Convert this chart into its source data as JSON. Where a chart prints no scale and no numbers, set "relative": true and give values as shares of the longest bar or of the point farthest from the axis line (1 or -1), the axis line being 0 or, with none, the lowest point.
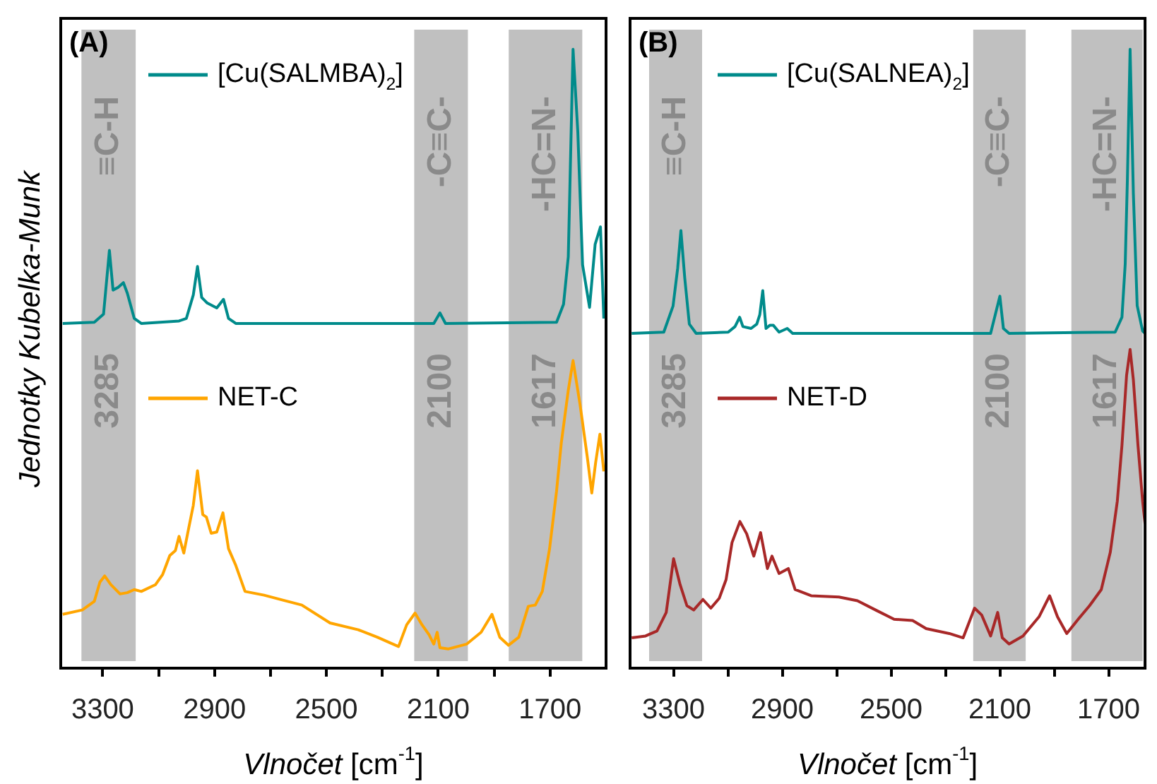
{
  "chart_data": [
    {
      "type": "line",
      "title": "(A)",
      "ylabel": "Jednotky Kubelka-Munk",
      "xlabel": "Vlnočet [cm$^{-1}$]",
      "relative": true,
      "legend": "top left",
      "xlim": [
        3450,
        1500
      ],
      "xticks": [
        3300,
        {
          "value": 3100,
          "label": null
        },
        2900,
        {
          "value": 2700,
          "label": null
        },
        2500,
        {
          "value": 2300,
          "label": null
        },
        2100,
        {
          "value": 1900,
          "label": null
        },
        1700
      ],
      "bands": [
        {
          "axis": "x",
          "from": 3376,
          "to": 3182,
          "label": "≡C-H",
          "color": "#c0c0c0"
        },
        {
          "axis": "x",
          "from": 2186,
          "to": 1994,
          "label": "-C≡C-",
          "color": "#c0c0c0"
        },
        {
          "axis": "x",
          "from": 1848,
          "to": 1585,
          "label": "-HC=N-",
          "color": "#c0c0c0"
        }
      ],
      "annotations": [
        "3285",
        "2100",
        "1617"
      ],
      "series": [
        {
          "name": "[Cu(SALMBA)$_{2}$]",
          "color": "#008b8b",
          "x": [
            3443,
            3330,
            3297,
            3276,
            3263,
            3246,
            3226,
            3212,
            3187,
            3162,
            3027,
            3001,
            2976,
            2961,
            2946,
            2926,
            2892,
            2868,
            2850,
            2824,
            2116,
            2094,
            2074,
            1677,
            1652,
            1635,
            1618,
            1601,
            1584,
            1559,
            1539,
            1520,
            1508
          ],
          "values": [
            0.557,
            0.559,
            0.572,
            0.675,
            0.611,
            0.615,
            0.623,
            0.606,
            0.565,
            0.557,
            0.561,
            0.565,
            0.603,
            0.649,
            0.599,
            0.59,
            0.582,
            0.596,
            0.565,
            0.557,
            0.557,
            0.574,
            0.557,
            0.559,
            0.588,
            0.665,
            1.0,
            0.867,
            0.652,
            0.583,
            0.685,
            0.713,
            0.565
          ]
        },
        {
          "name": "NET-C",
          "color": "#ffa500",
          "x": [
            3443,
            3373,
            3330,
            3310,
            3293,
            3271,
            3238,
            3212,
            3187,
            3162,
            3111,
            3086,
            3060,
            3040,
            3027,
            3010,
            2993,
            2976,
            2961,
            2942,
            2929,
            2912,
            2892,
            2870,
            2850,
            2824,
            2791,
            2723,
            2656,
            2588,
            2487,
            2386,
            2318,
            2268,
            2242,
            2213,
            2183,
            2158,
            2133,
            2116,
            2104,
            2094,
            2065,
            1998,
            1947,
            1908,
            1880,
            1849,
            1812,
            1778,
            1753,
            1728,
            1702,
            1677,
            1660,
            1635,
            1618,
            1593,
            1567,
            1551,
            1537,
            1522,
            1508
          ],
          "values": [
            0.087,
            0.094,
            0.108,
            0.139,
            0.149,
            0.135,
            0.12,
            0.122,
            0.127,
            0.124,
            0.135,
            0.151,
            0.182,
            0.19,
            0.213,
            0.186,
            0.225,
            0.263,
            0.319,
            0.248,
            0.244,
            0.218,
            0.22,
            0.251,
            0.193,
            0.166,
            0.124,
            0.118,
            0.11,
            0.102,
            0.073,
            0.062,
            0.05,
            0.04,
            0.035,
            0.07,
            0.089,
            0.07,
            0.054,
            0.039,
            0.058,
            0.033,
            0.031,
            0.039,
            0.058,
            0.087,
            0.05,
            0.037,
            0.05,
            0.1,
            0.102,
            0.124,
            0.193,
            0.286,
            0.364,
            0.449,
            0.497,
            0.426,
            0.341,
            0.283,
            0.333,
            0.378,
            0.318
          ]
        }
      ]
    },
    {
      "type": "line",
      "title": "(B)",
      "xlabel": "Vlnočet [cm$^{-1}$]",
      "relative": true,
      "legend": "top left",
      "xlim": [
        3460,
        1566
      ],
      "xticks": [
        3300,
        {
          "value": 3100,
          "label": null
        },
        2900,
        {
          "value": 2700,
          "label": null
        },
        2500,
        {
          "value": 2300,
          "label": null
        },
        2100,
        {
          "value": 1900,
          "label": null
        },
        1700
      ],
      "bands": [
        {
          "axis": "x",
          "from": 3390,
          "to": 3195,
          "label": "≡C-H",
          "color": "#c0c0c0"
        },
        {
          "axis": "x",
          "from": 2198,
          "to": 2005,
          "label": "-C≡C-",
          "color": "#c0c0c0"
        },
        {
          "axis": "x",
          "from": 1837,
          "to": 1575,
          "label": "-HC=N-",
          "color": "#c0c0c0"
        }
      ],
      "annotations": [
        "3285",
        "2100",
        "1617"
      ],
      "series": [
        {
          "name": "[Cu(SALNEA)$_{2}$]",
          "color": "#008b8b",
          "x": [
            3454,
            3336,
            3302,
            3285,
            3273,
            3259,
            3242,
            3217,
            3099,
            3074,
            3057,
            3045,
            3015,
            2994,
            2983,
            2972,
            2960,
            2946,
            2933,
            2912,
            2882,
            2862,
            2134,
            2100,
            2087,
            2066,
            1676,
            1651,
            1639,
            1631,
            1621,
            1609,
            1595,
            1575,
            1566
          ],
          "values": [
            0.541,
            0.543,
            0.585,
            0.646,
            0.707,
            0.631,
            0.556,
            0.541,
            0.543,
            0.552,
            0.567,
            0.552,
            0.549,
            0.556,
            0.571,
            0.61,
            0.549,
            0.554,
            0.554,
            0.543,
            0.549,
            0.541,
            0.541,
            0.601,
            0.549,
            0.541,
            0.543,
            0.567,
            0.653,
            0.789,
            1.0,
            0.767,
            0.586,
            0.545,
            0.541
          ]
        },
        {
          "name": "NET-D",
          "color": "#a82828",
          "x": [
            3454,
            3403,
            3361,
            3327,
            3300,
            3276,
            3251,
            3226,
            3192,
            3163,
            3132,
            3107,
            3085,
            3056,
            3031,
            3005,
            2980,
            2955,
            2938,
            2912,
            2878,
            2853,
            2794,
            2692,
            2624,
            2557,
            2489,
            2421,
            2371,
            2286,
            2235,
            2193,
            2167,
            2134,
            2108,
            2091,
            2066,
            2015,
            1956,
            1917,
            1888,
            1854,
            1812,
            1770,
            1727,
            1694,
            1668,
            1651,
            1634,
            1621,
            1609,
            1592,
            1575,
            1566
          ],
          "values": [
            0.049,
            0.052,
            0.06,
            0.09,
            0.177,
            0.135,
            0.101,
            0.094,
            0.111,
            0.097,
            0.113,
            0.143,
            0.203,
            0.237,
            0.217,
            0.181,
            0.219,
            0.161,
            0.181,
            0.153,
            0.161,
            0.127,
            0.117,
            0.115,
            0.109,
            0.094,
            0.079,
            0.077,
            0.064,
            0.056,
            0.049,
            0.097,
            0.086,
            0.052,
            0.09,
            0.049,
            0.039,
            0.052,
            0.083,
            0.117,
            0.083,
            0.056,
            0.079,
            0.101,
            0.127,
            0.187,
            0.27,
            0.36,
            0.473,
            0.515,
            0.466,
            0.36,
            0.27,
            0.233
          ]
        }
      ]
    }
  ]
}
